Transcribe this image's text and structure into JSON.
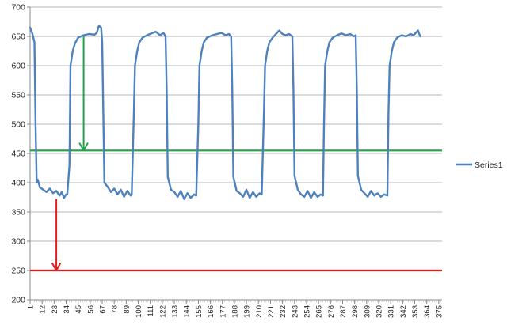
{
  "chart_data": {
    "type": "line",
    "title": "",
    "xlabel": "",
    "ylabel": "",
    "ylim": [
      200,
      700
    ],
    "y_ticks": [
      200,
      250,
      300,
      350,
      400,
      450,
      500,
      550,
      600,
      650,
      700
    ],
    "x_ticks": [
      1,
      12,
      23,
      34,
      45,
      56,
      67,
      78,
      89,
      100,
      111,
      122,
      133,
      144,
      155,
      166,
      177,
      188,
      199,
      210,
      221,
      232,
      243,
      254,
      265,
      276,
      287,
      298,
      309,
      320,
      331,
      342,
      353,
      364,
      375
    ],
    "x_range": [
      1,
      378
    ],
    "grid": "horizontal",
    "legend": {
      "position": "right",
      "entries": [
        "Series1"
      ]
    },
    "series": [
      {
        "name": "Series1",
        "color": "#4f81bd",
        "points": [
          [
            1,
            665
          ],
          [
            3,
            655
          ],
          [
            5,
            640
          ],
          [
            6,
            500
          ],
          [
            7,
            400
          ],
          [
            8,
            405
          ],
          [
            10,
            392
          ],
          [
            13,
            388
          ],
          [
            16,
            384
          ],
          [
            19,
            390
          ],
          [
            22,
            382
          ],
          [
            25,
            386
          ],
          [
            28,
            378
          ],
          [
            30,
            384
          ],
          [
            32,
            374
          ],
          [
            34,
            380
          ],
          [
            35,
            380
          ],
          [
            37,
            430
          ],
          [
            38,
            600
          ],
          [
            40,
            625
          ],
          [
            42,
            638
          ],
          [
            45,
            648
          ],
          [
            50,
            652
          ],
          [
            55,
            654
          ],
          [
            60,
            653
          ],
          [
            62,
            656
          ],
          [
            64,
            668
          ],
          [
            66,
            665
          ],
          [
            67,
            640
          ],
          [
            68,
            520
          ],
          [
            69,
            400
          ],
          [
            72,
            393
          ],
          [
            75,
            384
          ],
          [
            78,
            390
          ],
          [
            81,
            380
          ],
          [
            84,
            388
          ],
          [
            87,
            376
          ],
          [
            90,
            386
          ],
          [
            93,
            378
          ],
          [
            94,
            380
          ],
          [
            96,
            520
          ],
          [
            97,
            600
          ],
          [
            99,
            625
          ],
          [
            101,
            640
          ],
          [
            104,
            648
          ],
          [
            108,
            652
          ],
          [
            112,
            655
          ],
          [
            116,
            658
          ],
          [
            120,
            652
          ],
          [
            123,
            656
          ],
          [
            125,
            650
          ],
          [
            126,
            560
          ],
          [
            127,
            410
          ],
          [
            130,
            388
          ],
          [
            133,
            384
          ],
          [
            136,
            376
          ],
          [
            139,
            386
          ],
          [
            142,
            372
          ],
          [
            145,
            382
          ],
          [
            148,
            374
          ],
          [
            151,
            380
          ],
          [
            153,
            378
          ],
          [
            155,
            500
          ],
          [
            156,
            600
          ],
          [
            158,
            625
          ],
          [
            160,
            640
          ],
          [
            163,
            648
          ],
          [
            168,
            652
          ],
          [
            172,
            654
          ],
          [
            176,
            656
          ],
          [
            180,
            652
          ],
          [
            183,
            654
          ],
          [
            185,
            650
          ],
          [
            186,
            560
          ],
          [
            187,
            410
          ],
          [
            190,
            386
          ],
          [
            193,
            382
          ],
          [
            196,
            376
          ],
          [
            199,
            388
          ],
          [
            202,
            374
          ],
          [
            205,
            384
          ],
          [
            208,
            376
          ],
          [
            211,
            382
          ],
          [
            213,
            380
          ],
          [
            215,
            520
          ],
          [
            216,
            600
          ],
          [
            218,
            625
          ],
          [
            220,
            640
          ],
          [
            223,
            648
          ],
          [
            226,
            654
          ],
          [
            229,
            660
          ],
          [
            232,
            654
          ],
          [
            235,
            652
          ],
          [
            238,
            654
          ],
          [
            241,
            650
          ],
          [
            242,
            560
          ],
          [
            243,
            412
          ],
          [
            246,
            388
          ],
          [
            249,
            380
          ],
          [
            252,
            376
          ],
          [
            255,
            386
          ],
          [
            258,
            374
          ],
          [
            261,
            384
          ],
          [
            264,
            376
          ],
          [
            267,
            380
          ],
          [
            269,
            378
          ],
          [
            270,
            500
          ],
          [
            271,
            600
          ],
          [
            273,
            625
          ],
          [
            275,
            640
          ],
          [
            278,
            648
          ],
          [
            282,
            652
          ],
          [
            286,
            655
          ],
          [
            290,
            652
          ],
          [
            294,
            654
          ],
          [
            297,
            650
          ],
          [
            299,
            652
          ],
          [
            300,
            560
          ],
          [
            301,
            412
          ],
          [
            304,
            388
          ],
          [
            307,
            382
          ],
          [
            310,
            376
          ],
          [
            313,
            386
          ],
          [
            316,
            378
          ],
          [
            319,
            382
          ],
          [
            322,
            376
          ],
          [
            325,
            380
          ],
          [
            328,
            378
          ],
          [
            329,
            520
          ],
          [
            330,
            600
          ],
          [
            332,
            625
          ],
          [
            334,
            640
          ],
          [
            337,
            648
          ],
          [
            341,
            652
          ],
          [
            345,
            650
          ],
          [
            349,
            654
          ],
          [
            352,
            652
          ],
          [
            356,
            660
          ],
          [
            358,
            650
          ]
        ]
      }
    ],
    "reference_lines": [
      {
        "name": "green-line",
        "y": 455,
        "color": "#21a348"
      },
      {
        "name": "red-line",
        "y": 250,
        "color": "#e31b1b"
      }
    ],
    "annotations": [
      {
        "type": "arrow",
        "color": "#21a348",
        "x": 50,
        "from": 650,
        "to": 455
      },
      {
        "type": "arrow",
        "color": "#e31b1b",
        "x": 25,
        "from": 372,
        "to": 250
      }
    ]
  }
}
